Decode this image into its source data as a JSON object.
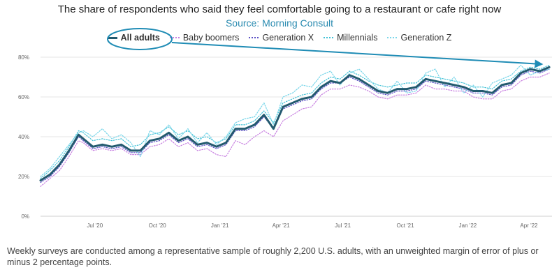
{
  "header": {
    "title": "The share of respondents who said they feel comfortable going to a restaurant or cafe right now",
    "subtitle": "Source: Morning Consult"
  },
  "footnote": "Weekly surveys are conducted among a representative sample of roughly 2,200 U.S. adults, with an unweighted margin of error of plus or minus 2 percentage points.",
  "colors": {
    "all_adults": "#235a6f",
    "baby_boomers": "#c77ee0",
    "generation_x": "#5a4fc4",
    "millennials": "#3fc1d6",
    "generation_z": "#7cd7ea",
    "annotation": "#1f8cb5"
  },
  "chart_data": {
    "type": "line",
    "title": "The share of respondents who said they feel comfortable going to a restaurant or cafe right now",
    "subtitle": "Source: Morning Consult",
    "ylim": [
      0,
      80
    ],
    "yticks": [
      "0%",
      "20%",
      "40%",
      "60%",
      "80%"
    ],
    "y_tick_values": [
      0,
      20,
      40,
      60,
      80
    ],
    "x_tick_labels": [
      "Jul '20",
      "Oct '20",
      "Jan '21",
      "Apr '21",
      "Jul '21",
      "Oct '21",
      "Jan '22",
      "Apr '22"
    ],
    "x_tick_dates": [
      "2020-07-01",
      "2020-10-01",
      "2021-01-01",
      "2021-04-01",
      "2021-07-01",
      "2021-10-01",
      "2022-01-01",
      "2022-04-01"
    ],
    "xlim": [
      "2020-04-12",
      "2022-05-05"
    ],
    "x": [
      "2020-04-12",
      "2020-04-26",
      "2020-05-10",
      "2020-05-24",
      "2020-06-07",
      "2020-06-14",
      "2020-06-28",
      "2020-07-12",
      "2020-07-26",
      "2020-08-09",
      "2020-08-23",
      "2020-09-06",
      "2020-09-20",
      "2020-10-04",
      "2020-10-18",
      "2020-11-01",
      "2020-11-15",
      "2020-11-29",
      "2020-12-13",
      "2020-12-27",
      "2021-01-10",
      "2021-01-24",
      "2021-02-07",
      "2021-02-21",
      "2021-03-07",
      "2021-03-21",
      "2021-04-04",
      "2021-04-18",
      "2021-05-02",
      "2021-05-16",
      "2021-05-30",
      "2021-06-13",
      "2021-06-27",
      "2021-07-11",
      "2021-07-25",
      "2021-08-08",
      "2021-08-22",
      "2021-09-05",
      "2021-09-19",
      "2021-10-03",
      "2021-10-17",
      "2021-10-31",
      "2021-11-14",
      "2021-11-28",
      "2021-12-12",
      "2021-12-26",
      "2022-01-09",
      "2022-01-23",
      "2022-02-06",
      "2022-02-20",
      "2022-03-06",
      "2022-03-20",
      "2022-04-03",
      "2022-04-17",
      "2022-05-01"
    ],
    "series": [
      {
        "name": "All adults",
        "values": [
          18,
          21,
          26,
          33,
          41,
          39,
          35,
          36,
          35,
          36,
          33,
          33,
          38,
          39,
          42,
          38,
          40,
          36,
          37,
          35,
          37,
          44,
          44,
          46,
          51,
          44,
          55,
          57,
          59,
          60,
          65,
          68,
          67,
          71,
          69,
          66,
          63,
          62,
          64,
          64,
          65,
          69,
          68,
          67,
          66,
          65,
          63,
          63,
          62,
          66,
          67,
          72,
          74,
          73,
          75
        ]
      },
      {
        "name": "Baby boomers",
        "values": [
          15,
          19,
          23,
          30,
          38,
          37,
          33,
          34,
          33,
          34,
          31,
          31,
          35,
          36,
          39,
          35,
          37,
          33,
          34,
          31,
          30,
          38,
          36,
          40,
          43,
          40,
          48,
          51,
          54,
          55,
          61,
          64,
          64,
          66,
          65,
          63,
          60,
          59,
          61,
          61,
          62,
          66,
          64,
          64,
          63,
          63,
          60,
          59,
          59,
          63,
          64,
          68,
          70,
          70,
          72
        ]
      },
      {
        "name": "Generation X",
        "values": [
          17,
          20,
          25,
          32,
          40,
          38,
          34,
          35,
          34,
          35,
          32,
          32,
          37,
          38,
          41,
          37,
          39,
          35,
          36,
          34,
          36,
          43,
          43,
          45,
          50,
          44,
          54,
          56,
          58,
          59,
          64,
          67,
          67,
          70,
          68,
          65,
          62,
          61,
          63,
          63,
          64,
          68,
          67,
          66,
          65,
          64,
          62,
          62,
          61,
          65,
          66,
          71,
          73,
          72,
          74
        ]
      },
      {
        "name": "Millennials",
        "values": [
          19,
          23,
          28,
          35,
          43,
          42,
          38,
          39,
          38,
          39,
          35,
          36,
          41,
          42,
          45,
          41,
          43,
          39,
          40,
          37,
          39,
          46,
          46,
          48,
          53,
          47,
          57,
          59,
          61,
          62,
          67,
          70,
          69,
          73,
          71,
          68,
          66,
          65,
          66,
          67,
          67,
          71,
          70,
          69,
          68,
          67,
          65,
          65,
          64,
          68,
          69,
          73,
          75,
          74,
          76
        ]
      },
      {
        "name": "Generation Z",
        "values": [
          20,
          24,
          30,
          36,
          42,
          43,
          40,
          44,
          39,
          41,
          37,
          30,
          43,
          41,
          46,
          39,
          44,
          37,
          42,
          36,
          40,
          47,
          49,
          50,
          57,
          46,
          60,
          62,
          66,
          65,
          71,
          73,
          66,
          72,
          74,
          69,
          64,
          62,
          68,
          62,
          63,
          72,
          74,
          65,
          70,
          62,
          66,
          60,
          67,
          69,
          71,
          76,
          71,
          73,
          74
        ]
      }
    ],
    "legend": [
      "All adults",
      "Baby boomers",
      "Generation X",
      "Millennials",
      "Generation Z"
    ],
    "legend_placement": "top-center",
    "grid": "horizontal",
    "annotation": {
      "type": "circle-and-arrow",
      "target": "All adults",
      "description_hidden": true
    }
  }
}
